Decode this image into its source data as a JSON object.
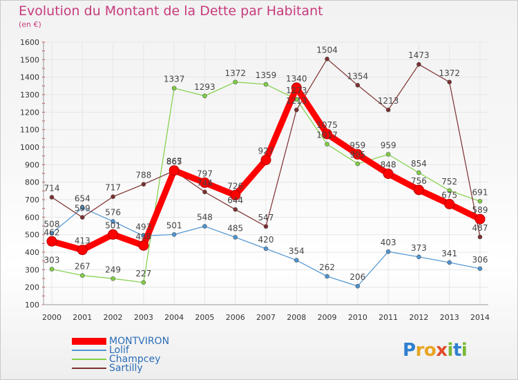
{
  "title": "Evolution du Montant de la Dette par Habitant",
  "subtitle": "(en €)",
  "logo": {
    "text": "Proxiti",
    "letters": [
      {
        "ch": "P",
        "color": "#2f7fcf"
      },
      {
        "ch": "r",
        "color": "#e8a522"
      },
      {
        "ch": "o",
        "color": "#e8a522"
      },
      {
        "ch": "x",
        "color": "#e24c2b"
      },
      {
        "ch": "i",
        "color": "#7ab833"
      },
      {
        "ch": "t",
        "color": "#2f7fcf"
      },
      {
        "ch": "i",
        "color": "#7ab833"
      }
    ]
  },
  "chart_data": {
    "type": "line",
    "x": [
      "2000",
      "2001",
      "2002",
      "2003",
      "2004",
      "2005",
      "2006",
      "2007",
      "2008",
      "2009",
      "2010",
      "2011",
      "2012",
      "2013",
      "2014"
    ],
    "ylim": [
      100,
      1600
    ],
    "yticks": [
      100,
      200,
      300,
      400,
      500,
      600,
      700,
      800,
      900,
      1000,
      1100,
      1200,
      1300,
      1400,
      1500,
      1600
    ],
    "grid": true,
    "legend_position": "bottom-left",
    "series": [
      {
        "name": "MONTVIRON",
        "color": "#ff0000",
        "values": [
          462,
          413,
          501,
          438,
          867,
          797,
          726,
          927,
          1340,
          1075,
          959,
          848,
          756,
          675,
          589
        ],
        "labels": [
          "462",
          "413",
          "501",
          "438",
          "867",
          "797",
          "726",
          "927",
          "1340",
          "1075",
          "959",
          "848",
          "756",
          "675",
          "589"
        ]
      },
      {
        "name": "Lolif",
        "color": "#4d94d1",
        "values": [
          508,
          654,
          576,
          493,
          501,
          548,
          485,
          420,
          354,
          262,
          206,
          403,
          373,
          341,
          306
        ],
        "labels": [
          "508",
          "654",
          "576",
          "493",
          "501",
          "548",
          "485",
          "420",
          "354",
          "262",
          "206",
          "403",
          "373",
          "341",
          "306"
        ]
      },
      {
        "name": "Champcey",
        "color": "#7fcf43",
        "values": [
          303,
          267,
          249,
          227,
          1337,
          1293,
          1372,
          1359,
          1273,
          1017,
          905,
          959,
          854,
          752,
          691
        ],
        "labels": [
          "303",
          "267",
          "249",
          "227",
          "1337",
          "1293",
          "1372",
          "1359",
          "1273",
          "1017",
          "905",
          "959",
          "854",
          "752",
          "691"
        ]
      },
      {
        "name": "Sartilly",
        "color": "#7c2e2e",
        "values": [
          714,
          599,
          717,
          788,
          865,
          744,
          644,
          547,
          1213,
          1504,
          1354,
          1213,
          1473,
          1372,
          487
        ],
        "labels": [
          "714",
          "599",
          "717",
          "788",
          "865",
          "744",
          "644",
          "547",
          "1213",
          "1504",
          "1354",
          "1213",
          "1473",
          "1372",
          "487"
        ]
      }
    ]
  }
}
